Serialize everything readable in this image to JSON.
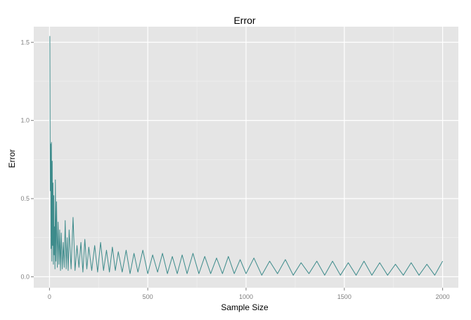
{
  "chart_data": {
    "type": "line",
    "title": "Error",
    "xlabel": "Sample Size",
    "ylabel": "Error",
    "xlim": [
      -80,
      2080
    ],
    "ylim": [
      -0.07,
      1.6
    ],
    "x_ticks": [
      {
        "value": 0,
        "label": "0"
      },
      {
        "value": 500,
        "label": "500"
      },
      {
        "value": 1000,
        "label": "1000"
      },
      {
        "value": 1500,
        "label": "1500"
      },
      {
        "value": 2000,
        "label": "2000"
      }
    ],
    "y_ticks": [
      {
        "value": 0.0,
        "label": "0.0"
      },
      {
        "value": 0.5,
        "label": "0.5"
      },
      {
        "value": 1.0,
        "label": "1.0"
      },
      {
        "value": 1.5,
        "label": "1.5"
      }
    ],
    "grid": true,
    "legend": "none",
    "series": [
      {
        "color": "#3d8b8b",
        "x": [
          2,
          4,
          6,
          8,
          10,
          12,
          14,
          16,
          18,
          20,
          22,
          24,
          26,
          28,
          30,
          33,
          36,
          40,
          44,
          48,
          52,
          56,
          60,
          65,
          70,
          75,
          80,
          85,
          90,
          95,
          100,
          110,
          120,
          130,
          140,
          150,
          160,
          170,
          180,
          190,
          200,
          215,
          230,
          245,
          260,
          275,
          290,
          305,
          320,
          335,
          350,
          370,
          390,
          410,
          430,
          450,
          475,
          500,
          525,
          550,
          575,
          600,
          625,
          650,
          675,
          700,
          730,
          760,
          790,
          820,
          850,
          880,
          910,
          940,
          970,
          1000,
          1040,
          1080,
          1120,
          1160,
          1200,
          1240,
          1280,
          1320,
          1360,
          1400,
          1440,
          1480,
          1520,
          1560,
          1600,
          1640,
          1680,
          1720,
          1760,
          1800,
          1840,
          1880,
          1920,
          1960,
          2000
        ],
        "y": [
          1.54,
          0.55,
          0.85,
          0.18,
          0.86,
          0.1,
          0.74,
          0.2,
          0.6,
          0.08,
          0.52,
          0.14,
          0.32,
          0.05,
          0.62,
          0.1,
          0.48,
          0.06,
          0.35,
          0.08,
          0.3,
          0.04,
          0.28,
          0.05,
          0.22,
          0.06,
          0.36,
          0.05,
          0.25,
          0.04,
          0.3,
          0.05,
          0.38,
          0.04,
          0.2,
          0.06,
          0.22,
          0.03,
          0.24,
          0.05,
          0.19,
          0.04,
          0.2,
          0.03,
          0.22,
          0.04,
          0.17,
          0.03,
          0.19,
          0.04,
          0.16,
          0.03,
          0.17,
          0.02,
          0.15,
          0.03,
          0.17,
          0.02,
          0.14,
          0.03,
          0.15,
          0.02,
          0.13,
          0.02,
          0.14,
          0.02,
          0.15,
          0.02,
          0.13,
          0.02,
          0.12,
          0.02,
          0.13,
          0.02,
          0.11,
          0.02,
          0.12,
          0.01,
          0.1,
          0.02,
          0.11,
          0.01,
          0.09,
          0.02,
          0.1,
          0.01,
          0.1,
          0.01,
          0.09,
          0.01,
          0.1,
          0.01,
          0.09,
          0.01,
          0.08,
          0.01,
          0.09,
          0.01,
          0.08,
          0.01,
          0.1
        ]
      }
    ]
  }
}
